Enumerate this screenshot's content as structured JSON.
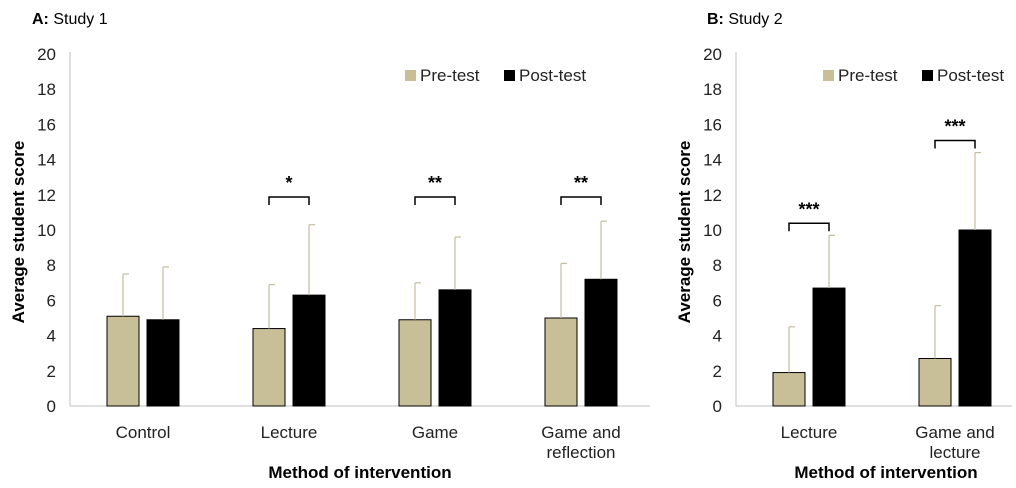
{
  "colors": {
    "pretest": "#c8bf98",
    "posttest": "#000000",
    "error": "#c4bca0",
    "axis": "#bfbfbf"
  },
  "chart_data": [
    {
      "type": "bar",
      "panel_label_bold": "A:",
      "panel_label": " Study 1",
      "categories": [
        [
          "Control"
        ],
        [
          "Lecture"
        ],
        [
          "Game"
        ],
        [
          "Game and",
          "reflection"
        ]
      ],
      "series": [
        {
          "name": "Pre-test",
          "values": [
            5.1,
            4.4,
            4.9,
            5.0
          ],
          "errors": [
            2.4,
            2.5,
            2.1,
            3.1
          ]
        },
        {
          "name": "Post-test",
          "values": [
            4.9,
            6.3,
            6.6,
            7.2
          ],
          "errors": [
            3.0,
            4.0,
            3.0,
            3.3
          ]
        }
      ],
      "significance": [
        "",
        "*",
        "**",
        "**"
      ],
      "xlabel": "Method of  intervention",
      "ylabel": "Average student score",
      "ylim": [
        0,
        20
      ],
      "yticks": [
        0,
        2,
        4,
        6,
        8,
        10,
        12,
        14,
        16,
        18,
        20
      ],
      "legend": "top-right",
      "grid": false
    },
    {
      "type": "bar",
      "panel_label_bold": "B:",
      "panel_label": " Study 2",
      "categories": [
        [
          "Lecture"
        ],
        [
          "Game and",
          "lecture"
        ]
      ],
      "series": [
        {
          "name": "Pre-test",
          "values": [
            1.9,
            2.7
          ],
          "errors": [
            2.6,
            3.0
          ]
        },
        {
          "name": "Post-test",
          "values": [
            6.7,
            10.0
          ],
          "errors": [
            3.0,
            4.4
          ]
        }
      ],
      "significance": [
        "***",
        "***"
      ],
      "xlabel": "Method of  intervention",
      "ylabel": "Average student score",
      "ylim": [
        0,
        20
      ],
      "yticks": [
        0,
        2,
        4,
        6,
        8,
        10,
        12,
        14,
        16,
        18,
        20
      ],
      "legend": "top-right",
      "grid": false
    }
  ]
}
